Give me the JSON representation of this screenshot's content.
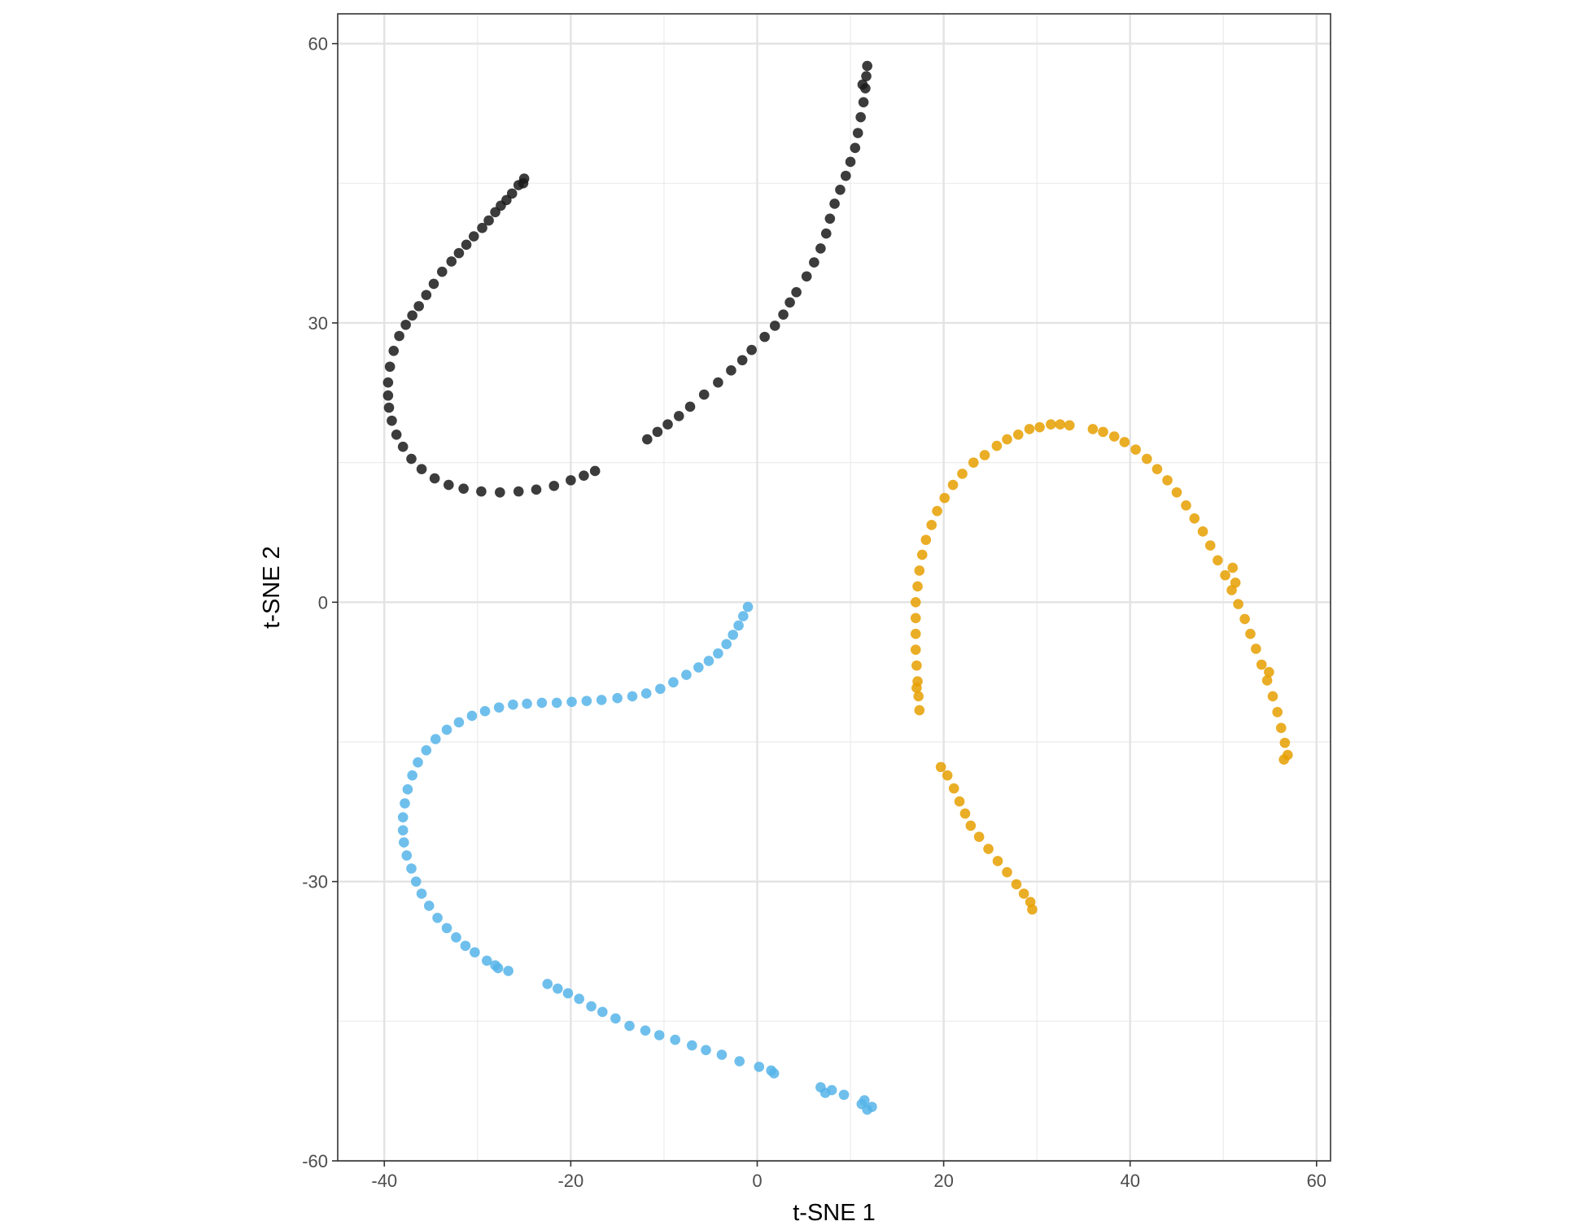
{
  "chart_data": {
    "type": "scatter",
    "title": "",
    "xlabel": "t-SNE 1",
    "ylabel": "t-SNE 2",
    "xlim": [
      -45,
      61.5
    ],
    "ylim": [
      -60,
      63.2
    ],
    "x_ticks": [
      -40,
      -20,
      0,
      20,
      40,
      60
    ],
    "y_ticks": [
      -60,
      -30,
      0,
      30,
      60
    ],
    "x_tick_labels": [
      "-40",
      "-20",
      "0",
      "20",
      "40",
      "60"
    ],
    "y_tick_labels": [
      "-60",
      "-30",
      "0",
      "30",
      "60"
    ],
    "grid": true,
    "legend": "none",
    "colors": [
      "#1a1a1a",
      "#56b4e9",
      "#e69f00"
    ],
    "series": [
      {
        "color": "#1a1a1a",
        "points": [
          [
            -25.0,
            45.5
          ],
          [
            -25.1,
            45.0
          ],
          [
            -25.6,
            44.8
          ],
          [
            -26.3,
            43.9
          ],
          [
            -26.9,
            43.2
          ],
          [
            -27.5,
            42.6
          ],
          [
            -28.1,
            41.9
          ],
          [
            -28.8,
            41.0
          ],
          [
            -29.5,
            40.2
          ],
          [
            -30.4,
            39.3
          ],
          [
            -31.2,
            38.4
          ],
          [
            -32.0,
            37.5
          ],
          [
            -32.8,
            36.6
          ],
          [
            -33.8,
            35.5
          ],
          [
            -34.7,
            34.2
          ],
          [
            -35.5,
            33.0
          ],
          [
            -36.3,
            31.8
          ],
          [
            -37.0,
            30.8
          ],
          [
            -37.7,
            29.8
          ],
          [
            -38.4,
            28.6
          ],
          [
            -39.0,
            27.0
          ],
          [
            -39.4,
            25.3
          ],
          [
            -39.6,
            23.6
          ],
          [
            -39.6,
            22.2
          ],
          [
            -39.5,
            20.9
          ],
          [
            -39.2,
            19.5
          ],
          [
            -38.7,
            18.0
          ],
          [
            -38.0,
            16.7
          ],
          [
            -37.1,
            15.4
          ],
          [
            -36.0,
            14.3
          ],
          [
            -34.6,
            13.3
          ],
          [
            -33.1,
            12.6
          ],
          [
            -31.5,
            12.2
          ],
          [
            -29.6,
            11.9
          ],
          [
            -27.6,
            11.8
          ],
          [
            -25.6,
            11.9
          ],
          [
            -23.7,
            12.1
          ],
          [
            -21.8,
            12.5
          ],
          [
            -20.0,
            13.1
          ],
          [
            -18.6,
            13.6
          ],
          [
            -17.4,
            14.1
          ],
          [
            -11.8,
            17.5
          ],
          [
            -10.7,
            18.3
          ],
          [
            -9.6,
            19.1
          ],
          [
            -8.4,
            20.0
          ],
          [
            -7.2,
            21.0
          ],
          [
            -5.7,
            22.3
          ],
          [
            -4.2,
            23.6
          ],
          [
            -2.8,
            24.9
          ],
          [
            -1.6,
            26.0
          ],
          [
            -0.6,
            27.1
          ],
          [
            0.8,
            28.5
          ],
          [
            1.9,
            29.7
          ],
          [
            2.8,
            30.9
          ],
          [
            3.5,
            32.2
          ],
          [
            4.2,
            33.3
          ],
          [
            5.3,
            35.0
          ],
          [
            6.1,
            36.5
          ],
          [
            6.8,
            38.0
          ],
          [
            7.4,
            39.6
          ],
          [
            7.8,
            41.2
          ],
          [
            8.3,
            42.8
          ],
          [
            8.9,
            44.3
          ],
          [
            9.5,
            45.8
          ],
          [
            10.0,
            47.3
          ],
          [
            10.5,
            48.8
          ],
          [
            10.8,
            50.4
          ],
          [
            11.1,
            52.1
          ],
          [
            11.4,
            53.7
          ],
          [
            11.6,
            55.2
          ],
          [
            11.7,
            56.5
          ],
          [
            11.8,
            57.6
          ],
          [
            11.3,
            55.6
          ]
        ]
      },
      {
        "color": "#56b4e9",
        "points": [
          [
            -1.0,
            -0.5
          ],
          [
            -1.5,
            -1.5
          ],
          [
            -2.0,
            -2.5
          ],
          [
            -2.6,
            -3.5
          ],
          [
            -3.3,
            -4.5
          ],
          [
            -4.2,
            -5.5
          ],
          [
            -5.2,
            -6.3
          ],
          [
            -6.3,
            -7.0
          ],
          [
            -7.6,
            -7.8
          ],
          [
            -9.0,
            -8.6
          ],
          [
            -10.4,
            -9.3
          ],
          [
            -11.9,
            -9.8
          ],
          [
            -13.4,
            -10.1
          ],
          [
            -15.0,
            -10.3
          ],
          [
            -16.7,
            -10.5
          ],
          [
            -18.3,
            -10.6
          ],
          [
            -19.9,
            -10.7
          ],
          [
            -21.5,
            -10.8
          ],
          [
            -23.1,
            -10.8
          ],
          [
            -24.7,
            -10.9
          ],
          [
            -26.2,
            -11.0
          ],
          [
            -27.7,
            -11.3
          ],
          [
            -29.2,
            -11.7
          ],
          [
            -30.6,
            -12.2
          ],
          [
            -32.0,
            -12.9
          ],
          [
            -33.3,
            -13.7
          ],
          [
            -34.5,
            -14.7
          ],
          [
            -35.5,
            -15.9
          ],
          [
            -36.4,
            -17.2
          ],
          [
            -37.0,
            -18.6
          ],
          [
            -37.5,
            -20.1
          ],
          [
            -37.8,
            -21.6
          ],
          [
            -38.0,
            -23.1
          ],
          [
            -38.0,
            -24.5
          ],
          [
            -37.9,
            -25.8
          ],
          [
            -37.6,
            -27.2
          ],
          [
            -37.1,
            -28.6
          ],
          [
            -36.6,
            -30.0
          ],
          [
            -36.0,
            -31.3
          ],
          [
            -35.2,
            -32.6
          ],
          [
            -34.3,
            -33.9
          ],
          [
            -33.3,
            -35.0
          ],
          [
            -32.3,
            -36.0
          ],
          [
            -31.3,
            -36.9
          ],
          [
            -30.3,
            -37.6
          ],
          [
            -29.0,
            -38.5
          ],
          [
            -27.8,
            -39.3
          ],
          [
            -26.7,
            -39.6
          ],
          [
            -22.5,
            -41.0
          ],
          [
            -21.4,
            -41.5
          ],
          [
            -20.3,
            -42.0
          ],
          [
            -19.1,
            -42.6
          ],
          [
            -17.8,
            -43.4
          ],
          [
            -16.6,
            -44.0
          ],
          [
            -15.2,
            -44.7
          ],
          [
            -13.7,
            -45.5
          ],
          [
            -12.0,
            -46.0
          ],
          [
            -10.5,
            -46.5
          ],
          [
            -8.8,
            -47.0
          ],
          [
            -7.0,
            -47.6
          ],
          [
            -5.5,
            -48.1
          ],
          [
            -3.8,
            -48.6
          ],
          [
            -1.9,
            -49.3
          ],
          [
            0.2,
            -49.9
          ],
          [
            1.5,
            -50.3
          ],
          [
            1.8,
            -50.6
          ],
          [
            6.8,
            -52.1
          ],
          [
            8.0,
            -52.4
          ],
          [
            9.3,
            -52.9
          ],
          [
            11.2,
            -53.9
          ],
          [
            12.3,
            -54.2
          ],
          [
            7.3,
            -52.7
          ],
          [
            11.5,
            -53.5
          ],
          [
            11.8,
            -54.5
          ],
          [
            -28.1,
            -39.0
          ]
        ]
      },
      {
        "color": "#e69f00",
        "points": [
          [
            33.5,
            19.0
          ],
          [
            32.5,
            19.1
          ],
          [
            31.5,
            19.1
          ],
          [
            30.3,
            18.8
          ],
          [
            29.2,
            18.6
          ],
          [
            28.0,
            18.0
          ],
          [
            26.8,
            17.5
          ],
          [
            25.7,
            16.8
          ],
          [
            24.4,
            15.8
          ],
          [
            23.2,
            15.0
          ],
          [
            22.0,
            13.8
          ],
          [
            21.0,
            12.6
          ],
          [
            20.1,
            11.2
          ],
          [
            19.3,
            9.8
          ],
          [
            18.7,
            8.3
          ],
          [
            18.1,
            6.7
          ],
          [
            17.7,
            5.1
          ],
          [
            17.4,
            3.4
          ],
          [
            17.2,
            1.7
          ],
          [
            17.0,
            0.0
          ],
          [
            17.0,
            -1.7
          ],
          [
            17.0,
            -3.4
          ],
          [
            17.0,
            -5.1
          ],
          [
            17.1,
            -6.8
          ],
          [
            17.2,
            -8.5
          ],
          [
            17.3,
            -10.1
          ],
          [
            17.4,
            -11.6
          ],
          [
            17.1,
            -9.2
          ],
          [
            19.7,
            -17.7
          ],
          [
            20.4,
            -18.6
          ],
          [
            21.1,
            -20.0
          ],
          [
            21.7,
            -21.4
          ],
          [
            22.3,
            -22.7
          ],
          [
            22.9,
            -24.0
          ],
          [
            23.8,
            -25.2
          ],
          [
            24.8,
            -26.5
          ],
          [
            25.8,
            -27.8
          ],
          [
            26.8,
            -29.0
          ],
          [
            27.8,
            -30.3
          ],
          [
            28.6,
            -31.3
          ],
          [
            29.3,
            -32.2
          ],
          [
            29.5,
            -33.0
          ],
          [
            36.0,
            18.6
          ],
          [
            37.1,
            18.3
          ],
          [
            38.3,
            17.8
          ],
          [
            39.4,
            17.2
          ],
          [
            40.6,
            16.4
          ],
          [
            41.8,
            15.4
          ],
          [
            42.9,
            14.3
          ],
          [
            44.0,
            13.1
          ],
          [
            45.0,
            11.8
          ],
          [
            46.0,
            10.4
          ],
          [
            46.9,
            9.0
          ],
          [
            47.8,
            7.6
          ],
          [
            48.6,
            6.1
          ],
          [
            49.4,
            4.5
          ],
          [
            50.2,
            2.9
          ],
          [
            50.9,
            1.3
          ],
          [
            51.6,
            -0.2
          ],
          [
            52.3,
            -1.8
          ],
          [
            52.9,
            -3.4
          ],
          [
            53.5,
            -5.0
          ],
          [
            54.1,
            -6.7
          ],
          [
            54.7,
            -8.4
          ],
          [
            55.3,
            -10.1
          ],
          [
            55.8,
            -11.8
          ],
          [
            56.2,
            -13.5
          ],
          [
            56.6,
            -15.1
          ],
          [
            56.9,
            -16.4
          ],
          [
            56.5,
            -16.9
          ],
          [
            54.9,
            -7.5
          ],
          [
            51.3,
            2.1
          ],
          [
            51.0,
            3.7
          ]
        ]
      }
    ]
  }
}
